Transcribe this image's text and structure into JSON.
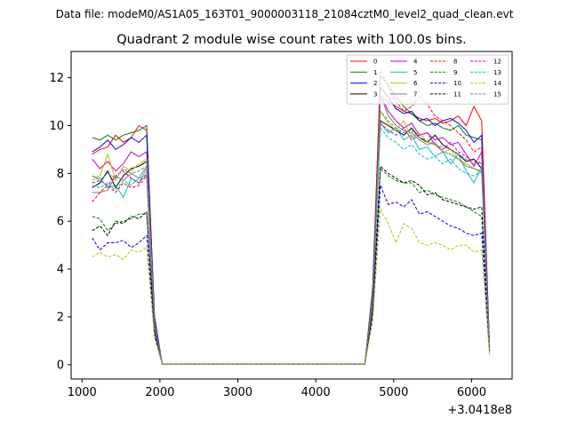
{
  "chart_data": {
    "type": "line",
    "suptitle": "Data file: modeM0/AS1A05_163T01_9000003118_21084cztM0_level2_quad_clean.evt",
    "title": "Quadrant 2 module wise count rates with 100.0s bins.",
    "xlabel": "",
    "ylabel": "",
    "x_offset_label": "+3.0418e8",
    "xlim": [
      860,
      6520
    ],
    "ylim": [
      -0.6,
      13.1
    ],
    "x_ticks": [
      1000,
      2000,
      3000,
      4000,
      5000,
      6000
    ],
    "x_tick_labels": [
      "1000",
      "2000",
      "3000",
      "4000",
      "5000",
      "6000"
    ],
    "y_ticks": [
      0,
      2,
      4,
      6,
      8,
      10,
      12
    ],
    "y_tick_labels": [
      "0",
      "2",
      "4",
      "6",
      "8",
      "10",
      "12"
    ],
    "x": [
      1130,
      1230,
      1330,
      1430,
      1530,
      1630,
      1730,
      1830,
      1930,
      2030,
      2130,
      2230,
      2330,
      2430,
      2530,
      2630,
      2730,
      2830,
      2930,
      3030,
      3130,
      3230,
      3330,
      3430,
      3530,
      3630,
      3730,
      3830,
      3930,
      4030,
      4130,
      4230,
      4330,
      4430,
      4530,
      4630,
      4730,
      4830,
      4930,
      5030,
      5130,
      5230,
      5330,
      5430,
      5530,
      5630,
      5730,
      5830,
      5930,
      6030,
      6130,
      6230
    ],
    "legend": {
      "position": "top-right",
      "columns": 4
    },
    "series": [
      {
        "name": "0",
        "color": "#ff0000",
        "dash": "solid",
        "values": [
          8.8,
          9.0,
          9.1,
          9.6,
          9.3,
          9.5,
          10.0,
          9.8,
          2.0,
          0.02,
          0.02,
          0.02,
          0.02,
          0.02,
          0.02,
          0.02,
          0.02,
          0.02,
          0.02,
          0.02,
          0.02,
          0.02,
          0.02,
          0.02,
          0.02,
          0.02,
          0.02,
          0.02,
          0.02,
          0.02,
          0.02,
          0.02,
          0.02,
          0.02,
          0.02,
          0.02,
          3.0,
          11.2,
          11.0,
          10.8,
          10.6,
          10.5,
          10.3,
          10.2,
          10.3,
          10.1,
          10.2,
          10.4,
          10.0,
          10.8,
          10.2,
          0.8
        ]
      },
      {
        "name": "1",
        "color": "#008000",
        "dash": "solid",
        "values": [
          9.5,
          9.4,
          9.6,
          9.4,
          9.6,
          9.7,
          9.8,
          10.0,
          1.9,
          0.02,
          0.02,
          0.02,
          0.02,
          0.02,
          0.02,
          0.02,
          0.02,
          0.02,
          0.02,
          0.02,
          0.02,
          0.02,
          0.02,
          0.02,
          0.02,
          0.02,
          0.02,
          0.02,
          0.02,
          0.02,
          0.02,
          0.02,
          0.02,
          0.02,
          0.02,
          0.02,
          3.2,
          12.1,
          11.7,
          11.2,
          10.8,
          10.5,
          10.2,
          10.0,
          10.1,
          9.9,
          9.8,
          10.0,
          9.6,
          9.5,
          9.4,
          0.7
        ]
      },
      {
        "name": "2",
        "color": "#0000ff",
        "dash": "solid",
        "values": [
          8.9,
          9.1,
          9.4,
          9.0,
          9.2,
          9.5,
          9.3,
          9.6,
          2.0,
          0.02,
          0.02,
          0.02,
          0.02,
          0.02,
          0.02,
          0.02,
          0.02,
          0.02,
          0.02,
          0.02,
          0.02,
          0.02,
          0.02,
          0.02,
          0.02,
          0.02,
          0.02,
          0.02,
          0.02,
          0.02,
          0.02,
          0.02,
          0.02,
          0.02,
          0.02,
          0.02,
          3.0,
          11.6,
          11.2,
          10.7,
          10.5,
          10.6,
          10.2,
          10.3,
          10.0,
          10.2,
          10.3,
          10.1,
          9.8,
          9.3,
          9.6,
          0.8
        ]
      },
      {
        "name": "3",
        "color": "#000000",
        "dash": "solid",
        "values": [
          7.4,
          7.6,
          8.1,
          7.4,
          7.9,
          8.2,
          8.3,
          8.5,
          1.7,
          0.02,
          0.02,
          0.02,
          0.02,
          0.02,
          0.02,
          0.02,
          0.02,
          0.02,
          0.02,
          0.02,
          0.02,
          0.02,
          0.02,
          0.02,
          0.02,
          0.02,
          0.02,
          0.02,
          0.02,
          0.02,
          0.02,
          0.02,
          0.02,
          0.02,
          0.02,
          0.02,
          2.8,
          10.2,
          10.0,
          9.8,
          9.6,
          9.9,
          9.5,
          9.3,
          9.6,
          9.2,
          9.0,
          8.8,
          8.5,
          8.6,
          8.2,
          0.7
        ]
      },
      {
        "name": "4",
        "color": "#bf00bf",
        "dash": "solid",
        "values": [
          8.6,
          8.2,
          8.5,
          8.1,
          8.4,
          8.9,
          8.7,
          8.9,
          1.8,
          0.02,
          0.02,
          0.02,
          0.02,
          0.02,
          0.02,
          0.02,
          0.02,
          0.02,
          0.02,
          0.02,
          0.02,
          0.02,
          0.02,
          0.02,
          0.02,
          0.02,
          0.02,
          0.02,
          0.02,
          0.02,
          0.02,
          0.02,
          0.02,
          0.02,
          0.02,
          0.02,
          2.9,
          11.3,
          10.6,
          10.2,
          9.9,
          10.1,
          9.6,
          9.7,
          9.4,
          9.5,
          9.2,
          9.3,
          8.8,
          8.3,
          8.9,
          0.7
        ]
      },
      {
        "name": "5",
        "color": "#00bfbf",
        "dash": "solid",
        "values": [
          7.9,
          7.8,
          7.4,
          7.5,
          7.0,
          7.8,
          7.6,
          8.2,
          1.7,
          0.02,
          0.02,
          0.02,
          0.02,
          0.02,
          0.02,
          0.02,
          0.02,
          0.02,
          0.02,
          0.02,
          0.02,
          0.02,
          0.02,
          0.02,
          0.02,
          0.02,
          0.02,
          0.02,
          0.02,
          0.02,
          0.02,
          0.02,
          0.02,
          0.02,
          0.02,
          0.02,
          2.7,
          10.1,
          9.7,
          9.9,
          9.4,
          9.6,
          9.0,
          9.1,
          8.7,
          8.9,
          8.4,
          8.8,
          8.1,
          7.6,
          8.3,
          0.7
        ]
      },
      {
        "name": "6",
        "color": "#bfbf00",
        "dash": "solid",
        "values": [
          7.7,
          7.9,
          8.8,
          7.7,
          8.3,
          8.1,
          8.4,
          8.6,
          1.7,
          0.02,
          0.02,
          0.02,
          0.02,
          0.02,
          0.02,
          0.02,
          0.02,
          0.02,
          0.02,
          0.02,
          0.02,
          0.02,
          0.02,
          0.02,
          0.02,
          0.02,
          0.02,
          0.02,
          0.02,
          0.02,
          0.02,
          0.02,
          0.02,
          0.02,
          0.02,
          0.02,
          2.7,
          10.6,
          10.1,
          9.8,
          10.2,
          9.5,
          9.7,
          9.3,
          9.2,
          8.9,
          9.0,
          8.6,
          8.4,
          8.2,
          8.0,
          0.6
        ]
      },
      {
        "name": "7",
        "color": "#808080",
        "dash": "solid",
        "values": [
          7.2,
          7.2,
          7.3,
          7.9,
          7.7,
          8.0,
          7.8,
          8.3,
          1.6,
          0.02,
          0.02,
          0.02,
          0.02,
          0.02,
          0.02,
          0.02,
          0.02,
          0.02,
          0.02,
          0.02,
          0.02,
          0.02,
          0.02,
          0.02,
          0.02,
          0.02,
          0.02,
          0.02,
          0.02,
          0.02,
          0.02,
          0.02,
          0.02,
          0.02,
          0.02,
          0.02,
          2.6,
          11.3,
          10.4,
          10.0,
          9.8,
          9.7,
          9.4,
          9.2,
          9.3,
          8.9,
          8.8,
          8.6,
          8.3,
          8.2,
          8.1,
          0.7
        ]
      },
      {
        "name": "8",
        "color": "#ff0000",
        "dash": "dashed",
        "values": [
          6.8,
          7.2,
          7.5,
          7.2,
          7.6,
          7.4,
          7.5,
          7.9,
          1.6,
          0.02,
          0.02,
          0.02,
          0.02,
          0.02,
          0.02,
          0.02,
          0.02,
          0.02,
          0.02,
          0.02,
          0.02,
          0.02,
          0.02,
          0.02,
          0.02,
          0.02,
          0.02,
          0.02,
          0.02,
          0.02,
          0.02,
          0.02,
          0.02,
          0.02,
          0.02,
          0.02,
          2.5,
          12.4,
          11.6,
          11.0,
          10.6,
          10.8,
          11.2,
          10.9,
          10.4,
          10.2,
          10.0,
          9.7,
          9.4,
          8.9,
          9.1,
          0.7
        ]
      },
      {
        "name": "9",
        "color": "#008000",
        "dash": "dashed",
        "values": [
          6.2,
          6.1,
          5.6,
          5.9,
          6.0,
          6.1,
          6.3,
          6.3,
          1.4,
          0.02,
          0.02,
          0.02,
          0.02,
          0.02,
          0.02,
          0.02,
          0.02,
          0.02,
          0.02,
          0.02,
          0.02,
          0.02,
          0.02,
          0.02,
          0.02,
          0.02,
          0.02,
          0.02,
          0.02,
          0.02,
          0.02,
          0.02,
          0.02,
          0.02,
          0.02,
          0.02,
          2.2,
          8.2,
          7.9,
          7.7,
          7.6,
          7.6,
          7.2,
          7.3,
          7.1,
          7.0,
          6.9,
          6.8,
          6.6,
          6.4,
          6.2,
          0.6
        ]
      },
      {
        "name": "10",
        "color": "#0000ff",
        "dash": "dashed",
        "values": [
          5.3,
          4.8,
          5.1,
          5.1,
          5.2,
          4.9,
          5.1,
          5.4,
          1.2,
          0.02,
          0.02,
          0.02,
          0.02,
          0.02,
          0.02,
          0.02,
          0.02,
          0.02,
          0.02,
          0.02,
          0.02,
          0.02,
          0.02,
          0.02,
          0.02,
          0.02,
          0.02,
          0.02,
          0.02,
          0.02,
          0.02,
          0.02,
          0.02,
          0.02,
          0.02,
          0.02,
          2.0,
          7.5,
          6.7,
          6.8,
          6.6,
          6.9,
          6.3,
          6.4,
          6.2,
          6.0,
          5.8,
          5.7,
          5.5,
          5.4,
          5.5,
          0.5
        ]
      },
      {
        "name": "11",
        "color": "#000000",
        "dash": "dashed",
        "values": [
          5.6,
          5.8,
          5.4,
          6.0,
          5.9,
          6.2,
          6.1,
          6.4,
          1.4,
          0.02,
          0.02,
          0.02,
          0.02,
          0.02,
          0.02,
          0.02,
          0.02,
          0.02,
          0.02,
          0.02,
          0.02,
          0.02,
          0.02,
          0.02,
          0.02,
          0.02,
          0.02,
          0.02,
          0.02,
          0.02,
          0.02,
          0.02,
          0.02,
          0.02,
          0.02,
          0.02,
          2.3,
          8.3,
          8.0,
          7.8,
          7.6,
          7.7,
          7.5,
          7.1,
          7.2,
          6.9,
          6.8,
          6.7,
          6.6,
          6.5,
          6.6,
          0.6
        ]
      },
      {
        "name": "12",
        "color": "#bf00bf",
        "dash": "dashed",
        "values": [
          7.6,
          7.7,
          7.5,
          7.9,
          8.1,
          7.8,
          7.6,
          8.0,
          1.6,
          0.02,
          0.02,
          0.02,
          0.02,
          0.02,
          0.02,
          0.02,
          0.02,
          0.02,
          0.02,
          0.02,
          0.02,
          0.02,
          0.02,
          0.02,
          0.02,
          0.02,
          0.02,
          0.02,
          0.02,
          0.02,
          0.02,
          0.02,
          0.02,
          0.02,
          0.02,
          0.02,
          2.6,
          10.1,
          9.8,
          9.6,
          9.9,
          9.4,
          9.6,
          9.7,
          9.2,
          9.0,
          9.3,
          8.9,
          8.7,
          8.5,
          8.4,
          0.7
        ]
      },
      {
        "name": "13",
        "color": "#00bfbf",
        "dash": "dashed",
        "values": [
          7.5,
          7.4,
          7.6,
          7.3,
          7.7,
          7.5,
          7.8,
          7.9,
          1.6,
          0.02,
          0.02,
          0.02,
          0.02,
          0.02,
          0.02,
          0.02,
          0.02,
          0.02,
          0.02,
          0.02,
          0.02,
          0.02,
          0.02,
          0.02,
          0.02,
          0.02,
          0.02,
          0.02,
          0.02,
          0.02,
          0.02,
          0.02,
          0.02,
          0.02,
          0.02,
          0.02,
          2.6,
          9.9,
          9.5,
          9.3,
          9.0,
          9.2,
          8.8,
          8.6,
          8.7,
          8.4,
          8.6,
          8.2,
          8.0,
          7.9,
          8.1,
          0.6
        ]
      },
      {
        "name": "14",
        "color": "#bfbf00",
        "dash": "dashed",
        "values": [
          4.5,
          4.7,
          4.5,
          4.6,
          4.4,
          4.8,
          4.7,
          4.9,
          1.1,
          0.02,
          0.02,
          0.02,
          0.02,
          0.02,
          0.02,
          0.02,
          0.02,
          0.02,
          0.02,
          0.02,
          0.02,
          0.02,
          0.02,
          0.02,
          0.02,
          0.02,
          0.02,
          0.02,
          0.02,
          0.02,
          0.02,
          0.02,
          0.02,
          0.02,
          0.02,
          0.02,
          1.8,
          6.5,
          5.9,
          5.1,
          5.9,
          5.7,
          5.1,
          5.0,
          5.1,
          5.0,
          4.8,
          5.0,
          5.0,
          4.7,
          4.8,
          0.4
        ]
      },
      {
        "name": "15",
        "color": "#808080",
        "dash": "dashed",
        "values": [
          7.9,
          7.7,
          8.0,
          7.8,
          8.2,
          8.0,
          8.1,
          8.3,
          1.7,
          0.02,
          0.02,
          0.02,
          0.02,
          0.02,
          0.02,
          0.02,
          0.02,
          0.02,
          0.02,
          0.02,
          0.02,
          0.02,
          0.02,
          0.02,
          0.02,
          0.02,
          0.02,
          0.02,
          0.02,
          0.02,
          0.02,
          0.02,
          0.02,
          0.02,
          0.02,
          0.02,
          2.7,
          10.6,
          10.2,
          9.9,
          9.7,
          9.8,
          9.5,
          9.4,
          9.2,
          9.1,
          9.0,
          8.8,
          8.6,
          8.4,
          8.5,
          0.7
        ]
      }
    ]
  }
}
